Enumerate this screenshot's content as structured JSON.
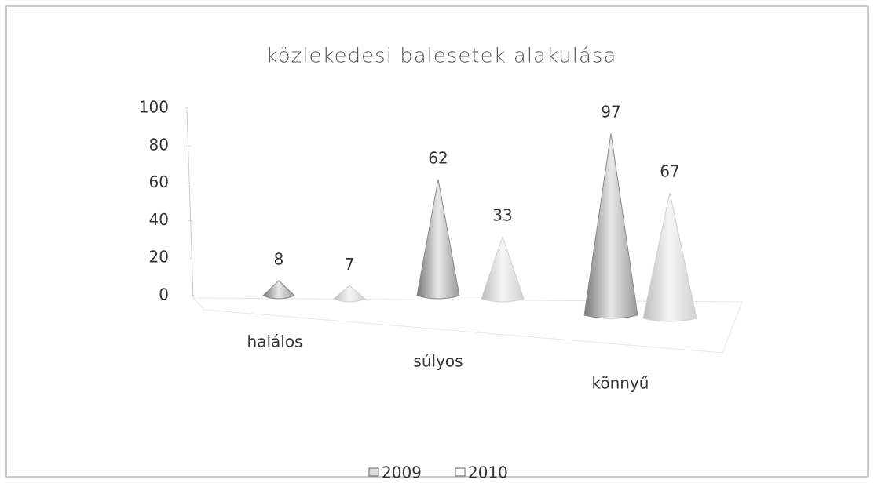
{
  "chart_data": {
    "type": "cone",
    "title": "közlekedesi balesetek alakulása",
    "categories": [
      "halálos",
      "súlyos",
      "könnyű"
    ],
    "series": [
      {
        "name": "2009",
        "color": "#8c8c8c",
        "values": [
          8,
          62,
          97
        ]
      },
      {
        "name": "2010",
        "color": "#cfcfcf",
        "values": [
          7,
          33,
          67
        ]
      }
    ],
    "ylim": [
      0,
      100
    ],
    "yticks": [
      0,
      20,
      40,
      60,
      80,
      100
    ],
    "legend": "bottom"
  }
}
